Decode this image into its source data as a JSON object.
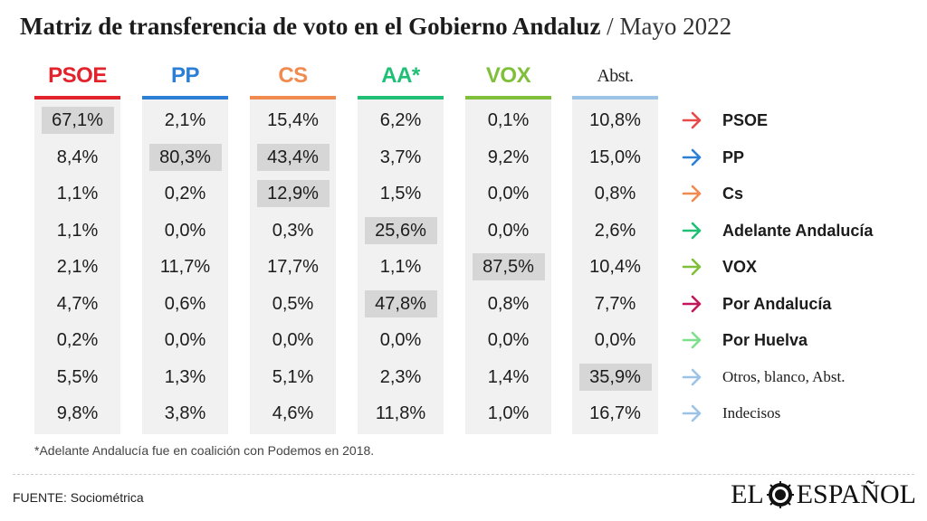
{
  "title": {
    "main": "Matriz de transferencia de voto en el Gobierno Andaluz",
    "separator": "/",
    "date": "Mayo 2022"
  },
  "chart_data": {
    "type": "table",
    "columns": [
      {
        "label": "PSOE",
        "color": "#e3232c"
      },
      {
        "label": "PP",
        "color": "#2b7fd4"
      },
      {
        "label": "CS",
        "color": "#f08a4e"
      },
      {
        "label": "AA*",
        "color": "#1fbf76"
      },
      {
        "label": "VOX",
        "color": "#7fbf3a"
      },
      {
        "label": "Abst.",
        "color": "#9cc3e6"
      }
    ],
    "rows": [
      {
        "label": "PSOE",
        "arrow_color": "#e84a4a",
        "style": "bold",
        "values": [
          "67,1%",
          "2,1%",
          "15,4%",
          "6,2%",
          "0,1%",
          "10,8%"
        ],
        "highlight": [
          0
        ]
      },
      {
        "label": "PP",
        "arrow_color": "#2b7fd4",
        "style": "bold",
        "values": [
          "8,4%",
          "80,3%",
          "43,4%",
          "3,7%",
          "9,2%",
          "15,0%"
        ],
        "highlight": [
          1,
          2
        ]
      },
      {
        "label": "Cs",
        "arrow_color": "#f08a4e",
        "style": "bold",
        "values": [
          "1,1%",
          "0,2%",
          "12,9%",
          "1,5%",
          "0,0%",
          "0,8%"
        ],
        "highlight": [
          2
        ]
      },
      {
        "label": "Adelante Andalucía",
        "arrow_color": "#1fbf76",
        "style": "bold",
        "values": [
          "1,1%",
          "0,0%",
          "0,3%",
          "25,6%",
          "0,0%",
          "2,6%"
        ],
        "highlight": [
          3
        ]
      },
      {
        "label": "VOX",
        "arrow_color": "#7fbf3a",
        "style": "bold",
        "values": [
          "2,1%",
          "11,7%",
          "17,7%",
          "1,1%",
          "87,5%",
          "10,4%"
        ],
        "highlight": [
          4
        ]
      },
      {
        "label": "Por Andalucía",
        "arrow_color": "#c2185b",
        "style": "bold",
        "values": [
          "4,7%",
          "0,6%",
          "0,5%",
          "47,8%",
          "0,8%",
          "7,7%"
        ],
        "highlight": [
          3
        ]
      },
      {
        "label": "Por Huelva",
        "arrow_color": "#7ee08a",
        "style": "bold",
        "values": [
          "0,2%",
          "0,0%",
          "0,0%",
          "0,0%",
          "0,0%",
          "0,0%"
        ],
        "highlight": []
      },
      {
        "label": "Otros, blanco, Abst.",
        "arrow_color": "#9cc3e6",
        "style": "serif",
        "values": [
          "5,5%",
          "1,3%",
          "5,1%",
          "2,3%",
          "1,4%",
          "35,9%"
        ],
        "highlight": [
          5
        ]
      },
      {
        "label": "Indecisos",
        "arrow_color": "#9cc3e6",
        "style": "serif",
        "values": [
          "9,8%",
          "3,8%",
          "4,6%",
          "11,8%",
          "1,0%",
          "16,7%"
        ],
        "highlight": []
      }
    ]
  },
  "footnote": "*Adelante Andalucía fue en coalición con Podemos en 2018.",
  "source": "FUENTE: Sociométrica",
  "logo": {
    "left": "EL",
    "right": "ESPAÑOL"
  }
}
